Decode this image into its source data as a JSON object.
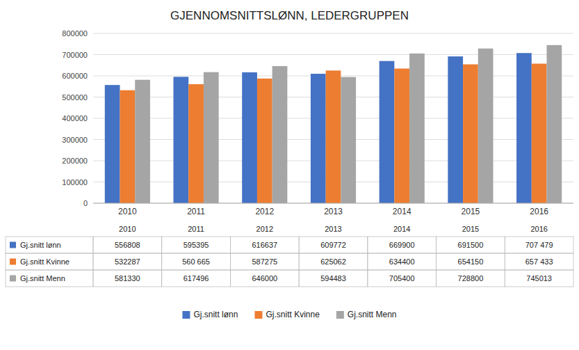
{
  "chart_data": {
    "type": "bar",
    "title": "GJENNOMSNITTSLØNN, LEDERGRUPPEN",
    "categories": [
      "2010",
      "2011",
      "2012",
      "2013",
      "2014",
      "2015",
      "2016"
    ],
    "series": [
      {
        "name": "Gj.snitt lønn",
        "color": "#4472C4",
        "values": [
          556808,
          595395,
          616637,
          609772,
          669900,
          691500,
          707479
        ],
        "value_labels": [
          "556808",
          "595395",
          "616637",
          "609772",
          "669900",
          "691500",
          "707 479"
        ]
      },
      {
        "name": "Gj.snitt Kvinne",
        "color": "#ED7D31",
        "values": [
          532287,
          560665,
          587275,
          625062,
          634400,
          654150,
          657433
        ],
        "value_labels": [
          "532287",
          "560 665",
          "587275",
          "625062",
          "634400",
          "654150",
          "657 433"
        ]
      },
      {
        "name": "Gj.snitt Menn",
        "color": "#A5A5A5",
        "values": [
          581330,
          617496,
          646000,
          594483,
          705400,
          728800,
          745013
        ],
        "value_labels": [
          "581330",
          "617496",
          "646000",
          "594483",
          "705400",
          "728800",
          "745013"
        ]
      }
    ],
    "ylim": [
      0,
      800000
    ],
    "yticks": [
      0,
      100000,
      200000,
      300000,
      400000,
      500000,
      600000,
      700000,
      800000
    ],
    "grid": true,
    "legend": "bottom"
  }
}
